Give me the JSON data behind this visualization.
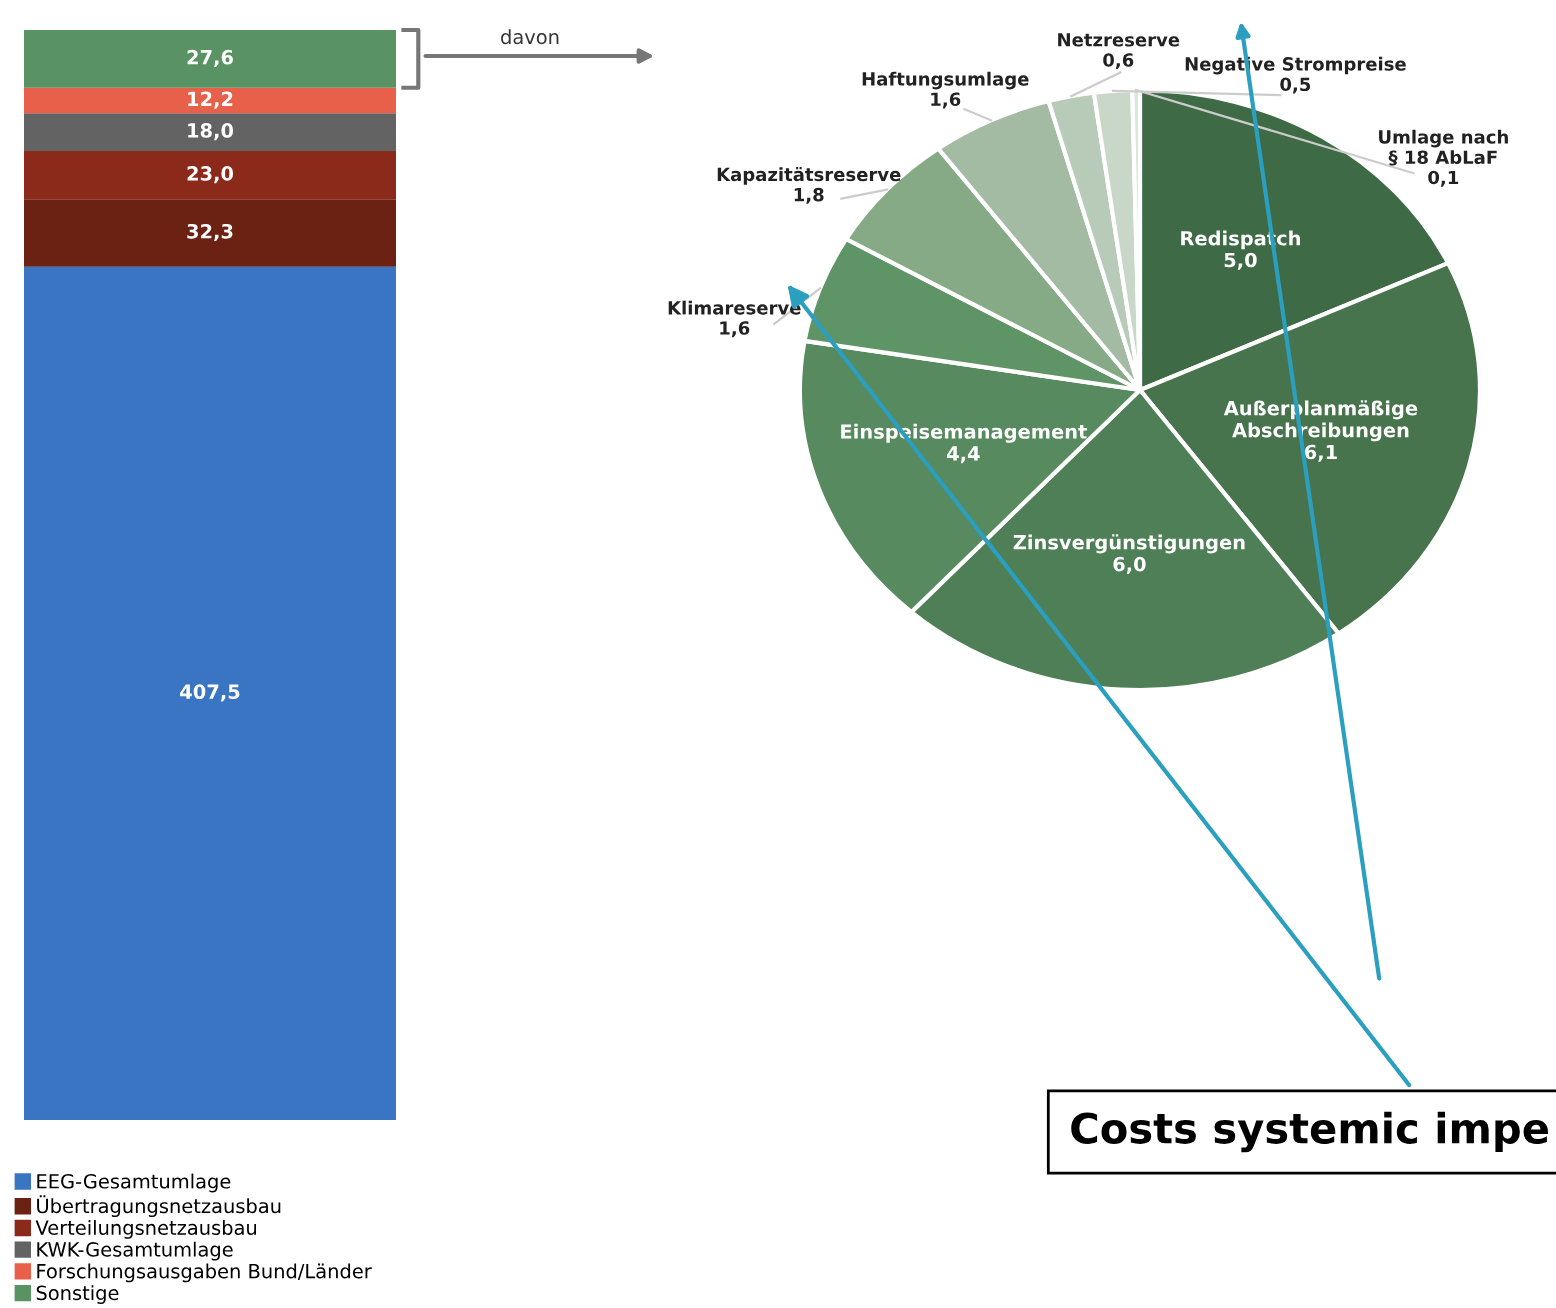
{
  "chart_data": [
    {
      "type": "bar",
      "stacked": true,
      "categories": [
        null
      ],
      "legend": "bottom",
      "grid": false,
      "series": [
        {
          "name": "EEG-Gesamtumlage",
          "color": "#3a75c4",
          "values": [
            407.5
          ],
          "value_labels": [
            "407,5"
          ]
        },
        {
          "name": "Übertragungsnetzausbau",
          "color": "#6b2213",
          "values": [
            32.3
          ],
          "value_labels": [
            "32,3"
          ]
        },
        {
          "name": "Verteilungsnetzausbau",
          "color": "#8b2a1a",
          "values": [
            23.0
          ],
          "value_labels": [
            "23,0"
          ]
        },
        {
          "name": "KWK-Gesamtumlage",
          "color": "#636363",
          "values": [
            18.0
          ],
          "value_labels": [
            "18,0"
          ]
        },
        {
          "name": "Forschungsausgaben Bund/Länder",
          "color": "#e8604a",
          "values": [
            12.2
          ],
          "value_labels": [
            "12,2"
          ]
        },
        {
          "name": "Sonstige",
          "color": "#5a9363",
          "values": [
            27.6
          ],
          "value_labels": [
            "27,6"
          ]
        }
      ],
      "annotations": [
        "davon"
      ]
    },
    {
      "type": "pie",
      "categories": [
        "Redispatch",
        "Außerplanmäßige Abschreibungen",
        "Zinsvergünstigungen",
        "Einspeisemanagement",
        "Klimareserve",
        "Kapazitätsreserve",
        "Haftungsumlage",
        "Netzreserve",
        "Negative Strompreise",
        "Umlage nach § 18 AbLaF"
      ],
      "values": [
        5.0,
        6.1,
        6.0,
        4.4,
        1.6,
        1.8,
        1.6,
        0.6,
        0.5,
        0.1
      ],
      "value_labels": [
        "5,0",
        "6,1",
        "6,0",
        "4,4",
        "1,6",
        "1,8",
        "1,6",
        "0,6",
        "0,5",
        "0,1"
      ],
      "colors": [
        "#3e6b45",
        "#47744c",
        "#4f7f56",
        "#578a5e",
        "#5f9466",
        "#86aa86",
        "#a3bba3",
        "#b8cbb8",
        "#c9d7c9",
        "#dbe5db"
      ],
      "annotations": [
        "Costs systemic impe"
      ]
    }
  ]
}
